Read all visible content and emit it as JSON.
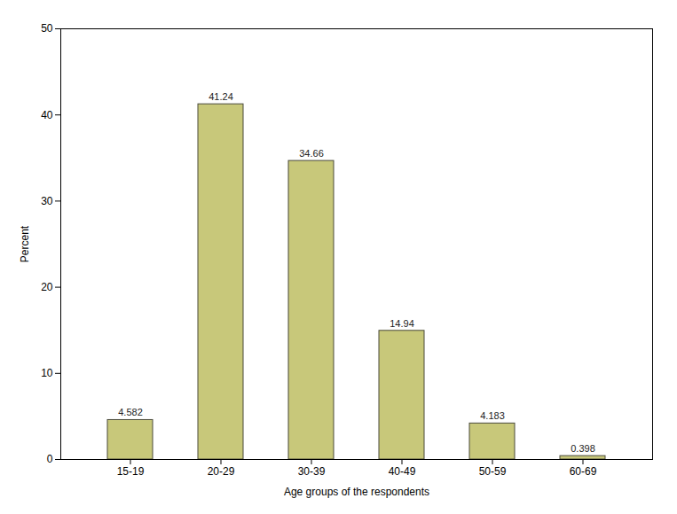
{
  "chart_data": {
    "type": "bar",
    "categories": [
      "15-19",
      "20-29",
      "30-39",
      "40-49",
      "50-59",
      "60-69"
    ],
    "values": [
      4.582,
      41.24,
      34.66,
      14.94,
      4.183,
      0.398
    ],
    "color": "#C8C87A",
    "xlabel": "Age groups of the respondents",
    "ylabel": "Percent",
    "ylim": [
      0,
      50
    ],
    "yticks": [
      0,
      10,
      20,
      30,
      40,
      50
    ],
    "grid": false,
    "data_labels": true
  }
}
